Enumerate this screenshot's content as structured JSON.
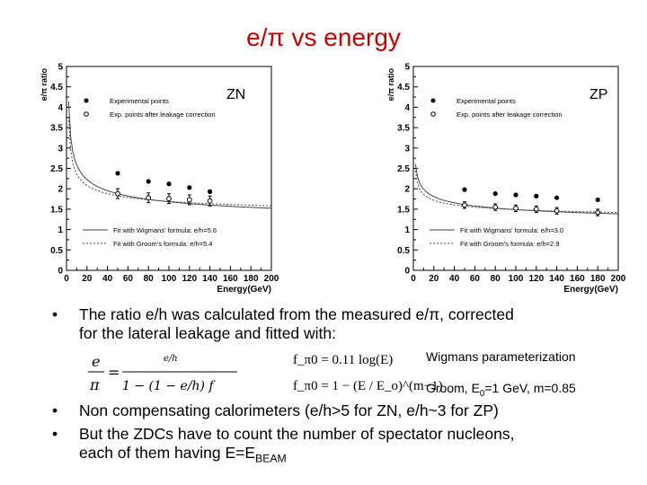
{
  "slide": {
    "title": "e/π vs energy"
  },
  "chart_data": [
    {
      "type": "scatter",
      "label": "ZN",
      "xlabel": "Energy(GeV)",
      "ylabel": "e/π ratio",
      "xlim": [
        0,
        200
      ],
      "ylim": [
        0,
        5
      ],
      "xticks": [
        "0",
        "20",
        "40",
        "60",
        "80",
        "100",
        "120",
        "140",
        "160",
        "180",
        "200"
      ],
      "yticks": [
        "0",
        "0.5",
        "1",
        "1.5",
        "2",
        "2.5",
        "3",
        "3.5",
        "4",
        "4.5",
        "5"
      ],
      "legend_top": [
        "Experimental points",
        "Exp. points after leakage correction"
      ],
      "legend_bottom": [
        "Fit with Wigmans' formula: e/h=5.6",
        "Fit with Groom's formula: e/h=5.4"
      ],
      "series": [
        {
          "name": "Experimental points",
          "x": [
            50,
            80,
            100,
            120,
            140
          ],
          "y": [
            2.38,
            2.18,
            2.12,
            2.03,
            1.93
          ]
        },
        {
          "name": "Exp. points after leakage correction",
          "x": [
            50,
            80,
            100,
            120,
            140
          ],
          "y": [
            1.88,
            1.78,
            1.76,
            1.73,
            1.7
          ],
          "yerr": [
            0.12,
            0.12,
            0.12,
            0.12,
            0.12
          ]
        }
      ],
      "fits": {
        "e_over_h": [
          5.6,
          5.4
        ]
      }
    },
    {
      "type": "scatter",
      "label": "ZP",
      "xlabel": "Energy(GeV)",
      "ylabel": "e/π ratio",
      "xlim": [
        0,
        200
      ],
      "ylim": [
        0,
        5
      ],
      "xticks": [
        "0",
        "20",
        "40",
        "60",
        "80",
        "100",
        "120",
        "140",
        "160",
        "180",
        "200"
      ],
      "yticks": [
        "0",
        "0.5",
        "1",
        "1.5",
        "2",
        "2.5",
        "3",
        "3.5",
        "4",
        "4.5",
        "5"
      ],
      "legend_top": [
        "Experimental points",
        "Exp. points after leakage correction"
      ],
      "legend_bottom": [
        "Fit with Wigmans' formula: e/h=3.0",
        "Fit with Groom's formula: e/h=2.9"
      ],
      "series": [
        {
          "name": "Experimental points",
          "x": [
            50,
            80,
            100,
            120,
            140,
            180
          ],
          "y": [
            1.98,
            1.88,
            1.85,
            1.82,
            1.78,
            1.73
          ]
        },
        {
          "name": "Exp. points after leakage correction",
          "x": [
            50,
            80,
            100,
            120,
            140,
            180
          ],
          "y": [
            1.6,
            1.55,
            1.52,
            1.5,
            1.46,
            1.42
          ],
          "yerr": [
            0.08,
            0.08,
            0.08,
            0.08,
            0.08,
            0.08
          ]
        }
      ],
      "fits": {
        "e_over_h": [
          3.0,
          2.9
        ]
      }
    }
  ],
  "bullets": [
    {
      "symbol": "•",
      "lines": [
        "The ratio e/h was calculated from the measured e/π, corrected",
        "for the lateral leakage and fitted with:"
      ]
    },
    {
      "symbol": "•",
      "lines": [
        "Non compensating calorimeters (e/h>5 for ZN, e/h~3 for ZP)"
      ]
    },
    {
      "symbol": "•",
      "lines": [
        "But the ZDCs have to count the number of spectator nucleons,",
        "each of them having E=E"
      ],
      "sub": "BEAM"
    }
  ],
  "formulas": {
    "ratio_lhs": "e",
    "ratio_den": "π",
    "ratio_num": "e/h",
    "ratio_rhs_den": "1 − (1 − e/h) f",
    "wigmans": "f_π0 = 0.11 log(E)",
    "groom": "f_π0 = 1 − (E / E_o)^(m−1)"
  },
  "notes": {
    "wigmans": "Wigmans parameterization",
    "groom_prefix": "Groom, E",
    "groom_sub": "0",
    "groom_suffix": "=1 GeV, m=0.85"
  }
}
